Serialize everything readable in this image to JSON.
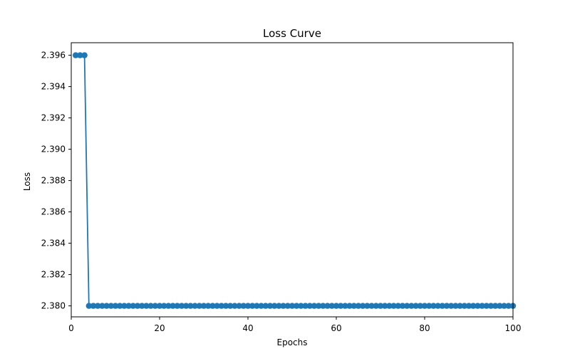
{
  "chart_data": {
    "type": "line",
    "title": "Loss Curve",
    "xlabel": "Epochs",
    "ylabel": "Loss",
    "xlim": [
      0,
      100
    ],
    "ylim": [
      2.3793,
      2.3968
    ],
    "xticks": [
      0,
      20,
      40,
      60,
      80,
      100
    ],
    "yticks": [
      2.38,
      2.382,
      2.384,
      2.386,
      2.388,
      2.39,
      2.392,
      2.394,
      2.396
    ],
    "xtick_labels": [
      "0",
      "20",
      "40",
      "60",
      "80",
      "100"
    ],
    "ytick_labels": [
      "2.380",
      "2.382",
      "2.384",
      "2.386",
      "2.388",
      "2.390",
      "2.392",
      "2.394",
      "2.396"
    ],
    "grid": false,
    "color": "#1f77b4",
    "marker": "circle",
    "series": [
      {
        "x_start": 1,
        "x_end": 100,
        "segments": [
          {
            "from": 1,
            "to": 3,
            "value": 2.396
          },
          {
            "from": 4,
            "to": 100,
            "value": 2.38
          }
        ]
      }
    ]
  }
}
